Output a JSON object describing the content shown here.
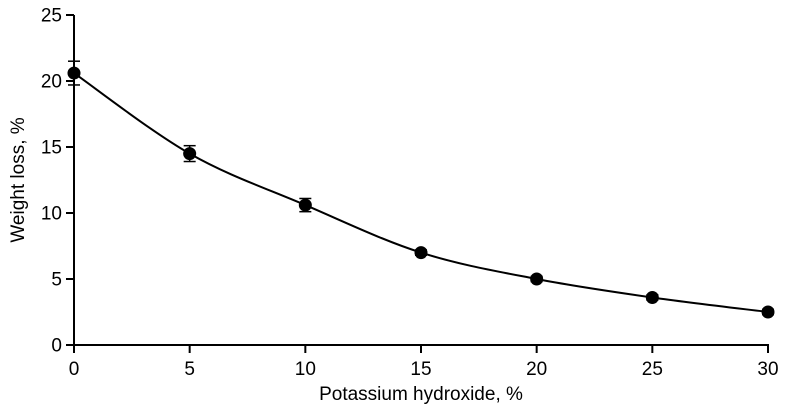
{
  "chart_data": {
    "type": "line",
    "title": "",
    "xlabel": "Potassium hydroxide, %",
    "ylabel": "Weight loss, %",
    "x": [
      0,
      5,
      10,
      15,
      20,
      25,
      30
    ],
    "series": [
      {
        "name": "Weight loss",
        "values": [
          20.6,
          14.5,
          10.6,
          7.0,
          5.0,
          3.6,
          2.5
        ],
        "y_error": [
          0.9,
          0.6,
          0.5,
          0.2,
          0.2,
          0.2,
          0.2
        ],
        "marker": "filled-circle",
        "color": "#000000",
        "line_style": "smooth"
      }
    ],
    "xlim": [
      0,
      30
    ],
    "ylim": [
      0,
      25
    ],
    "xticks": [
      0,
      5,
      10,
      15,
      20,
      25,
      30
    ],
    "yticks": [
      0,
      5,
      10,
      15,
      20,
      25
    ],
    "grid": false,
    "legend": false,
    "error_bars": true,
    "axis_color": "#000000",
    "background_color": "#ffffff"
  }
}
